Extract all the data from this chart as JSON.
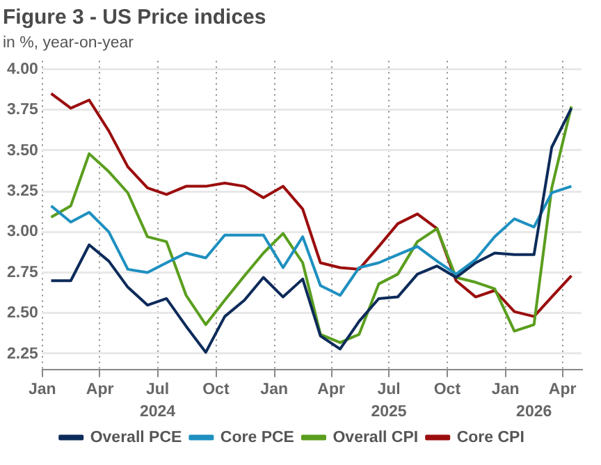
{
  "chart_data": {
    "type": "line",
    "title": "Figure 3 - US Price indices",
    "subtitle": "in %, year-on-year",
    "x": [
      "2024-01-15",
      "2024-02-15",
      "2024-03-15",
      "2024-04-15",
      "2024-05-15",
      "2024-06-15",
      "2024-07-15",
      "2024-08-15",
      "2024-09-15",
      "2024-10-15",
      "2024-11-15",
      "2024-12-15",
      "2025-01-15",
      "2025-02-15",
      "2025-03-15",
      "2025-04-15",
      "2025-05-15",
      "2025-06-15",
      "2025-07-15",
      "2025-08-15",
      "2025-09-15",
      "2025-10-15",
      "2025-11-15",
      "2025-12-15",
      "2026-01-15",
      "2026-02-15",
      "2026-03-15",
      "2026-04-15"
    ],
    "series": [
      {
        "name": "Overall PCE",
        "color": "#0d2b5a",
        "values": [
          2.7,
          2.7,
          2.92,
          2.82,
          2.66,
          2.55,
          2.59,
          2.42,
          2.26,
          2.48,
          2.58,
          2.72,
          2.6,
          2.71,
          2.36,
          2.28,
          2.45,
          2.59,
          2.6,
          2.74,
          2.79,
          2.72,
          2.81,
          2.87,
          2.86,
          2.86,
          3.52,
          3.76
        ]
      },
      {
        "name": "Core PCE",
        "color": "#1e90c0",
        "values": [
          3.16,
          3.06,
          3.12,
          3.0,
          2.77,
          2.75,
          2.81,
          2.87,
          2.84,
          2.98,
          2.98,
          2.98,
          2.78,
          2.97,
          2.67,
          2.61,
          2.78,
          2.81,
          2.86,
          2.91,
          2.82,
          2.74,
          2.83,
          2.97,
          3.08,
          3.03,
          3.24,
          3.28
        ]
      },
      {
        "name": "Overall CPI",
        "color": "#5a9e1e",
        "values": [
          3.09,
          3.16,
          3.48,
          3.37,
          3.24,
          2.97,
          2.94,
          2.61,
          2.43,
          2.58,
          2.73,
          2.87,
          2.99,
          2.81,
          2.37,
          2.32,
          2.37,
          2.68,
          2.74,
          2.94,
          3.02,
          2.72,
          2.69,
          2.65,
          2.39,
          2.43,
          3.27,
          3.77
        ]
      },
      {
        "name": "Core CPI",
        "color": "#9b0d0d",
        "values": [
          3.85,
          3.76,
          3.81,
          3.62,
          3.4,
          3.27,
          3.23,
          3.28,
          3.28,
          3.3,
          3.28,
          3.21,
          3.28,
          3.14,
          2.81,
          2.78,
          2.77,
          2.91,
          3.05,
          3.11,
          3.02,
          2.7,
          2.6,
          2.64,
          2.51,
          2.48,
          2.6,
          2.73
        ]
      }
    ],
    "xlim": [
      "2024-01-01",
      "2026-05-01"
    ],
    "xticks": [
      {
        "value": "2024-01-01",
        "label": "Jan"
      },
      {
        "value": "2024-04-01",
        "label": "Apr"
      },
      {
        "value": "2024-07-01",
        "label": "Jul"
      },
      {
        "value": "2024-10-01",
        "label": "Oct"
      },
      {
        "value": "2025-01-01",
        "label": "Jan"
      },
      {
        "value": "2025-04-01",
        "label": "Apr"
      },
      {
        "value": "2025-07-01",
        "label": "Jul"
      },
      {
        "value": "2025-10-01",
        "label": "Oct"
      },
      {
        "value": "2026-01-01",
        "label": "Jan"
      },
      {
        "value": "2026-04-01",
        "label": "Apr"
      }
    ],
    "x2lim": [
      "2024-01-01",
      "2026-05-01"
    ],
    "x2ticks": [
      {
        "value": "2024-07-01",
        "label": "2024"
      },
      {
        "value": "2025-07-01",
        "label": "2025"
      },
      {
        "value": "2026-02-15",
        "label": "2026"
      }
    ],
    "ylim": [
      2.15,
      4.05
    ],
    "yticks": [
      {
        "value": 2.25,
        "label": "2.25"
      },
      {
        "value": 2.5,
        "label": "2.50"
      },
      {
        "value": 2.75,
        "label": "2.75"
      },
      {
        "value": 3,
        "label": "3.00"
      },
      {
        "value": 3.25,
        "label": "3.25"
      },
      {
        "value": 3.5,
        "label": "3.50"
      },
      {
        "value": 3.75,
        "label": "3.75"
      },
      {
        "value": 4,
        "label": "4.00"
      }
    ],
    "grid": true,
    "legend": "bottom",
    "marker": "none",
    "line_style": "solid"
  }
}
